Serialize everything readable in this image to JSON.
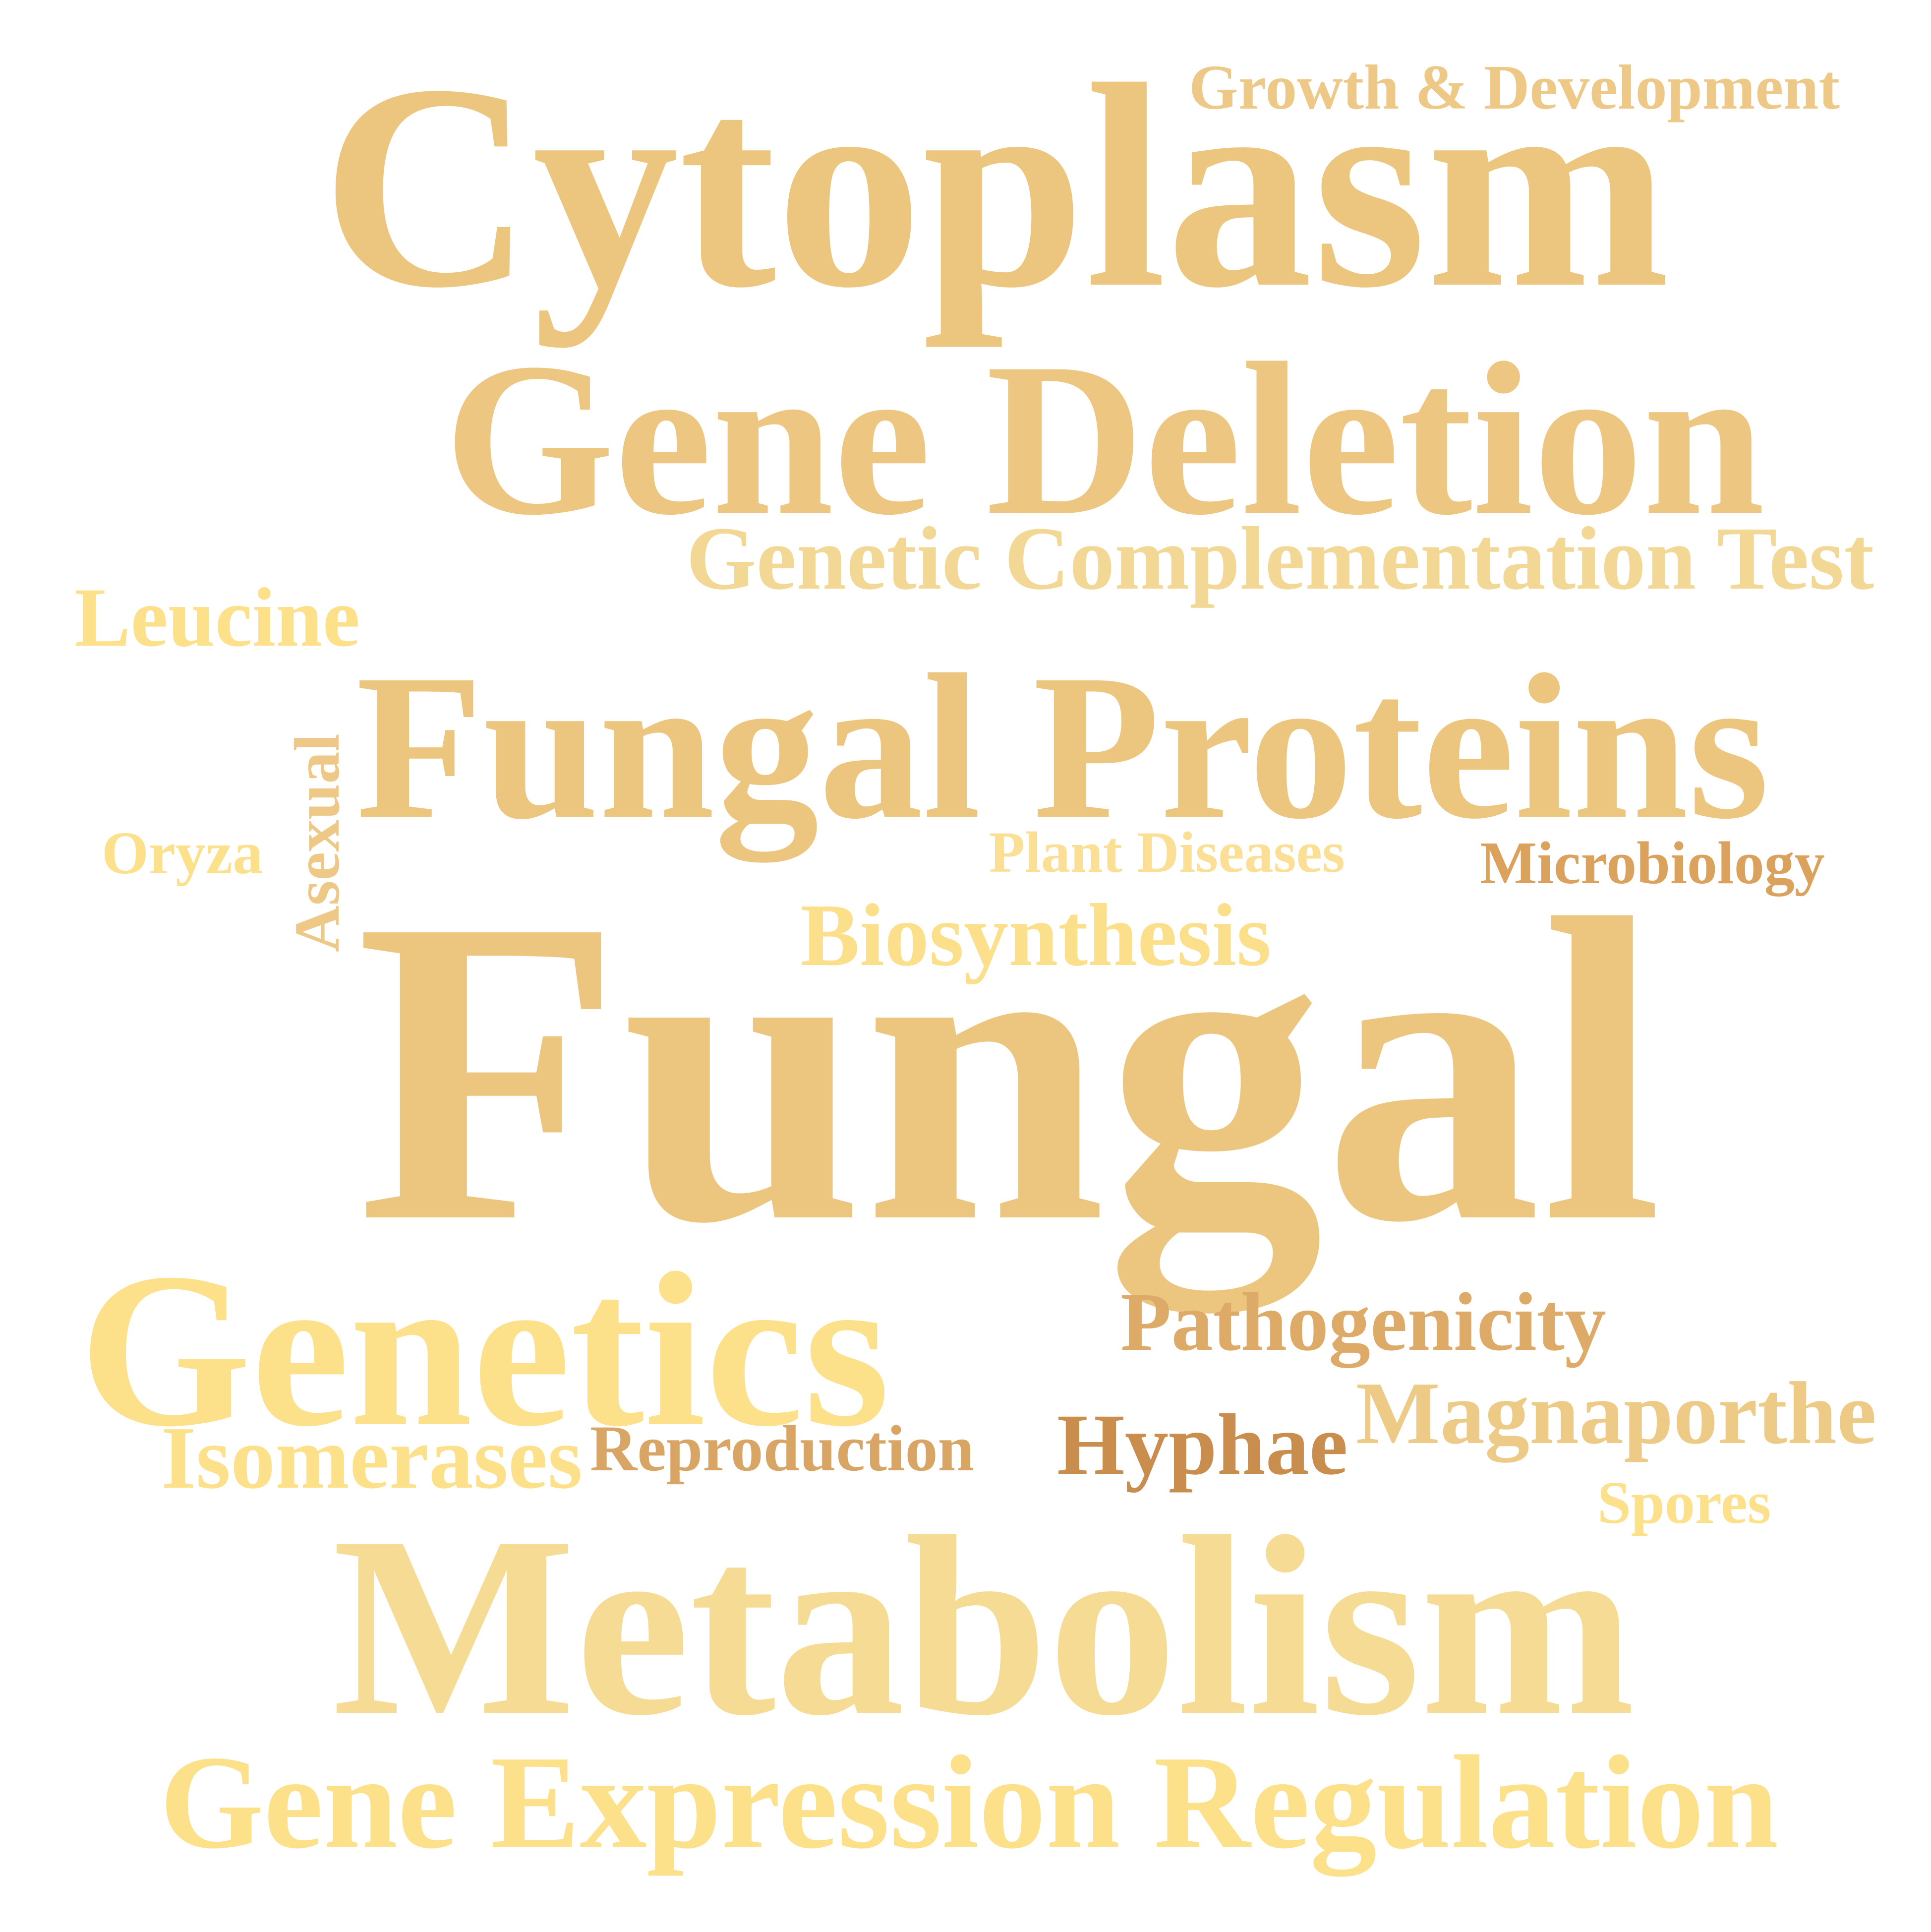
{
  "word_cloud": {
    "words": {
      "cytoplasm": {
        "text": "Cytoplasm",
        "color": "#ecc67e"
      },
      "growth_development": {
        "text": "Growth & Development",
        "color": "#edc886"
      },
      "gene_deletion": {
        "text": "Gene Deletion",
        "color": "#edc782"
      },
      "genetic_complementation_test": {
        "text": "Genetic Complementation Test",
        "color": "#f2d795"
      },
      "leucine": {
        "text": "Leucine",
        "color": "#fde08a"
      },
      "fungal_proteins": {
        "text": "Fungal Proteins",
        "color": "#ecc67e"
      },
      "asexual": {
        "text": "Asexual",
        "color": "#edc886"
      },
      "oryza": {
        "text": "Oryza",
        "color": "#fde08a"
      },
      "plant_diseases": {
        "text": "Plant Diseases",
        "color": "#fbdf94"
      },
      "microbiology": {
        "text": "Microbiology",
        "color": "#dba25e"
      },
      "biosynthesis": {
        "text": "Biosynthesis",
        "color": "#fcdf8a"
      },
      "fungal": {
        "text": "Fungal",
        "color": "#ecc67e"
      },
      "genetics": {
        "text": "Genetics",
        "color": "#fde08a"
      },
      "pathogenicity": {
        "text": "Pathogenicity",
        "color": "#deaa67"
      },
      "magnaporthe": {
        "text": "Magnaporthe",
        "color": "#edcb86"
      },
      "isomerases": {
        "text": "Isomerases",
        "color": "#fde08a"
      },
      "reproduction": {
        "text": "Reproduction",
        "color": "#d8a565"
      },
      "hyphae": {
        "text": "Hyphae",
        "color": "#c98e4d"
      },
      "spores": {
        "text": "Spores",
        "color": "#fde08a"
      },
      "metabolism": {
        "text": "Metabolism",
        "color": "#f5db93"
      },
      "gene_expression_regulation": {
        "text": "Gene Expression Regulation",
        "color": "#fde08a"
      }
    }
  }
}
